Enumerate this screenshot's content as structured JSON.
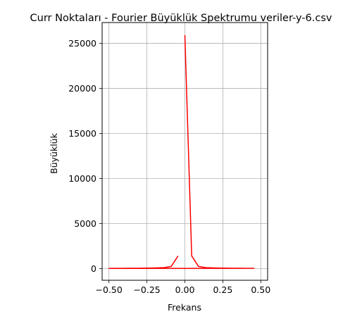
{
  "chart_data": {
    "type": "line",
    "title": "Curr Noktaları - Fourier Büyüklük Spektrumu veriler-y-6.csv",
    "xlabel": "Frekans",
    "ylabel": "Büyüklük",
    "xlim": [
      -0.545,
      0.545
    ],
    "ylim": [
      -1300,
      27300
    ],
    "xticks": [
      -0.5,
      -0.25,
      0.0,
      0.25,
      0.5
    ],
    "xtick_labels": [
      "−0.50",
      "−0.25",
      "0.00",
      "0.25",
      "0.50"
    ],
    "yticks": [
      0,
      5000,
      10000,
      15000,
      20000,
      25000
    ],
    "ytick_labels": [
      "0",
      "5000",
      "10000",
      "15000",
      "20000",
      "25000"
    ],
    "grid": true,
    "legend": "none",
    "line_color": "#ff0000",
    "series": [
      {
        "x": [
          0.0,
          0.045,
          0.09,
          0.136,
          0.182,
          0.227,
          0.273,
          0.318,
          0.364,
          0.409,
          0.455,
          -0.5,
          -0.455,
          -0.409,
          -0.364,
          -0.318,
          -0.273,
          -0.227,
          -0.182,
          -0.136,
          -0.09,
          -0.045
        ],
        "y": [
          25900,
          1400,
          230,
          110,
          80,
          60,
          50,
          40,
          35,
          30,
          25,
          20,
          25,
          30,
          35,
          40,
          50,
          60,
          80,
          110,
          230,
          1400
        ]
      }
    ]
  }
}
